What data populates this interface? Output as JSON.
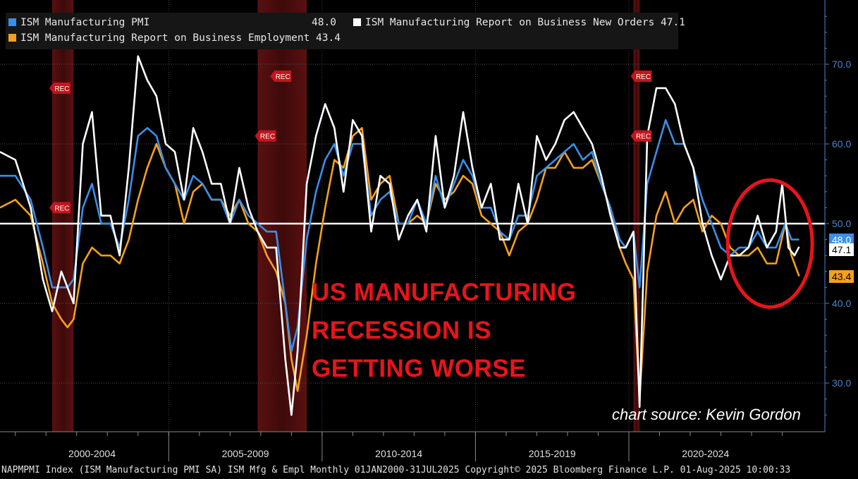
{
  "legend": {
    "pmi": {
      "label": "ISM Manufacturing PMI",
      "value": "48.0",
      "color": "#3a8fe8"
    },
    "new_orders": {
      "label": "ISM Manufacturing Report on Business New Orders",
      "value": "47.1",
      "color": "#ffffff"
    },
    "employment": {
      "label": "ISM Manufacturing Report on Business Employment",
      "value": "43.4",
      "color": "#f5a11c"
    }
  },
  "overlay": {
    "line1": "US MANUFACTURING",
    "line2": "RECESSION IS",
    "line3": "GETTING WORSE",
    "color": "#e8141a"
  },
  "source": "chart source: Kevin Gordon",
  "footer": "NAPMPMI Index (ISM Manufacturing PMI SA) ISM Mfg & Empl  Monthly 01JAN2000-31JUL2025 Copyright© 2025 Bloomberg Finance L.P. 01-Aug-2025 10:00:33",
  "recession_label": "REC",
  "chart_data": {
    "type": "line",
    "title": "",
    "xlabel": "",
    "ylabel": "",
    "x_categories": [
      "2000-2004",
      "2005-2009",
      "2010-2014",
      "2015-2019",
      "2020-2024"
    ],
    "x_range": [
      1999.5,
      2025.7
    ],
    "ylim": [
      24,
      78
    ],
    "y_ticks": [
      30.0,
      40.0,
      50.0,
      60.0,
      70.0
    ],
    "y_tick_labels": [
      "30.0",
      "40.0",
      "50.0",
      "60.0",
      "70.0"
    ],
    "reference_line": 50.0,
    "recessions": [
      [
        2001.2,
        2001.9
      ],
      [
        2007.9,
        2009.5
      ],
      [
        2020.15,
        2020.35
      ]
    ],
    "last_value_tags": [
      {
        "series": "ISM Manufacturing PMI",
        "label": "48.0",
        "value": 48.0,
        "bg": "#3a8fe8",
        "fg": "#ffffff"
      },
      {
        "series": "ISM Manufacturing Report on Business New Orders",
        "label": "47.1",
        "value": 47.1,
        "bg": "#ffffff",
        "fg": "#000000"
      },
      {
        "series": "ISM Manufacturing Report on Business Employment",
        "label": "43.4",
        "value": 43.4,
        "bg": "#f5a11c",
        "fg": "#000000"
      }
    ],
    "highlight_ellipse": {
      "center": [
        2024.6,
        47.5
      ],
      "color": "#e8141a"
    },
    "series": [
      {
        "name": "ISM Manufacturing Report on Business Employment",
        "color": "#f5a11c",
        "points": [
          [
            1999.5,
            52
          ],
          [
            2000.0,
            53
          ],
          [
            2000.5,
            51
          ],
          [
            2000.9,
            45
          ],
          [
            2001.2,
            40
          ],
          [
            2001.5,
            38
          ],
          [
            2001.7,
            37
          ],
          [
            2001.9,
            38
          ],
          [
            2002.2,
            45
          ],
          [
            2002.5,
            47
          ],
          [
            2002.8,
            46
          ],
          [
            2003.1,
            46
          ],
          [
            2003.4,
            45
          ],
          [
            2003.7,
            48
          ],
          [
            2004.0,
            53
          ],
          [
            2004.3,
            57
          ],
          [
            2004.6,
            60
          ],
          [
            2004.9,
            57
          ],
          [
            2005.2,
            55
          ],
          [
            2005.5,
            50
          ],
          [
            2005.8,
            54
          ],
          [
            2006.1,
            55
          ],
          [
            2006.4,
            53
          ],
          [
            2006.7,
            53
          ],
          [
            2007.0,
            51
          ],
          [
            2007.3,
            53
          ],
          [
            2007.6,
            50
          ],
          [
            2007.9,
            49
          ],
          [
            2008.2,
            46
          ],
          [
            2008.5,
            44
          ],
          [
            2008.8,
            40
          ],
          [
            2009.0,
            33
          ],
          [
            2009.2,
            29
          ],
          [
            2009.5,
            36
          ],
          [
            2009.8,
            45
          ],
          [
            2010.1,
            52
          ],
          [
            2010.4,
            58
          ],
          [
            2010.7,
            57
          ],
          [
            2011.0,
            61
          ],
          [
            2011.3,
            62
          ],
          [
            2011.6,
            53
          ],
          [
            2011.9,
            55
          ],
          [
            2012.2,
            56
          ],
          [
            2012.5,
            50
          ],
          [
            2012.8,
            50
          ],
          [
            2013.1,
            51
          ],
          [
            2013.4,
            50
          ],
          [
            2013.7,
            55
          ],
          [
            2014.0,
            53
          ],
          [
            2014.3,
            54
          ],
          [
            2014.6,
            56
          ],
          [
            2014.9,
            55
          ],
          [
            2015.2,
            51
          ],
          [
            2015.5,
            50
          ],
          [
            2015.8,
            49
          ],
          [
            2016.1,
            46
          ],
          [
            2016.4,
            49
          ],
          [
            2016.7,
            50
          ],
          [
            2017.0,
            53
          ],
          [
            2017.3,
            57
          ],
          [
            2017.6,
            57
          ],
          [
            2017.9,
            59
          ],
          [
            2018.2,
            57
          ],
          [
            2018.5,
            57
          ],
          [
            2018.8,
            58
          ],
          [
            2019.1,
            55
          ],
          [
            2019.4,
            52
          ],
          [
            2019.7,
            47
          ],
          [
            2019.9,
            45
          ],
          [
            2020.15,
            43
          ],
          [
            2020.35,
            28
          ],
          [
            2020.6,
            44
          ],
          [
            2020.9,
            51
          ],
          [
            2021.2,
            54
          ],
          [
            2021.5,
            50
          ],
          [
            2021.8,
            52
          ],
          [
            2022.1,
            53
          ],
          [
            2022.4,
            49
          ],
          [
            2022.7,
            51
          ],
          [
            2023.0,
            50
          ],
          [
            2023.3,
            47
          ],
          [
            2023.6,
            46
          ],
          [
            2023.9,
            46
          ],
          [
            2024.2,
            47
          ],
          [
            2024.5,
            45
          ],
          [
            2024.8,
            45
          ],
          [
            2025.1,
            50
          ],
          [
            2025.3,
            46
          ],
          [
            2025.55,
            43.4
          ]
        ]
      },
      {
        "name": "ISM Manufacturing PMI",
        "color": "#3a8fe8",
        "points": [
          [
            1999.5,
            56
          ],
          [
            2000.0,
            56
          ],
          [
            2000.5,
            53
          ],
          [
            2000.9,
            47
          ],
          [
            2001.2,
            42
          ],
          [
            2001.5,
            42
          ],
          [
            2001.7,
            42
          ],
          [
            2001.9,
            43
          ],
          [
            2002.2,
            52
          ],
          [
            2002.5,
            55
          ],
          [
            2002.8,
            50
          ],
          [
            2003.1,
            50
          ],
          [
            2003.4,
            47
          ],
          [
            2003.7,
            53
          ],
          [
            2004.0,
            61
          ],
          [
            2004.3,
            62
          ],
          [
            2004.6,
            61
          ],
          [
            2004.9,
            57
          ],
          [
            2005.2,
            55
          ],
          [
            2005.5,
            53
          ],
          [
            2005.8,
            56
          ],
          [
            2006.1,
            55
          ],
          [
            2006.4,
            53
          ],
          [
            2006.7,
            53
          ],
          [
            2007.0,
            50
          ],
          [
            2007.3,
            53
          ],
          [
            2007.6,
            51
          ],
          [
            2007.9,
            50
          ],
          [
            2008.2,
            49
          ],
          [
            2008.5,
            49
          ],
          [
            2008.8,
            40
          ],
          [
            2009.0,
            34
          ],
          [
            2009.2,
            37
          ],
          [
            2009.5,
            48
          ],
          [
            2009.8,
            54
          ],
          [
            2010.1,
            58
          ],
          [
            2010.4,
            60
          ],
          [
            2010.7,
            56
          ],
          [
            2011.0,
            60
          ],
          [
            2011.3,
            60
          ],
          [
            2011.6,
            51
          ],
          [
            2011.9,
            53
          ],
          [
            2012.2,
            54
          ],
          [
            2012.5,
            50
          ],
          [
            2012.8,
            50
          ],
          [
            2013.1,
            53
          ],
          [
            2013.4,
            50
          ],
          [
            2013.7,
            56
          ],
          [
            2014.0,
            52
          ],
          [
            2014.3,
            55
          ],
          [
            2014.6,
            58
          ],
          [
            2014.9,
            56
          ],
          [
            2015.2,
            52
          ],
          [
            2015.5,
            52
          ],
          [
            2015.8,
            49
          ],
          [
            2016.1,
            48
          ],
          [
            2016.4,
            51
          ],
          [
            2016.7,
            51
          ],
          [
            2017.0,
            56
          ],
          [
            2017.3,
            57
          ],
          [
            2017.6,
            58
          ],
          [
            2017.9,
            59
          ],
          [
            2018.2,
            60
          ],
          [
            2018.5,
            58
          ],
          [
            2018.8,
            59
          ],
          [
            2019.1,
            55
          ],
          [
            2019.4,
            52
          ],
          [
            2019.7,
            48
          ],
          [
            2019.9,
            47
          ],
          [
            2020.15,
            49
          ],
          [
            2020.35,
            42
          ],
          [
            2020.6,
            55
          ],
          [
            2020.9,
            59
          ],
          [
            2021.2,
            63
          ],
          [
            2021.5,
            60
          ],
          [
            2021.8,
            60
          ],
          [
            2022.1,
            57
          ],
          [
            2022.4,
            53
          ],
          [
            2022.7,
            50
          ],
          [
            2023.0,
            47
          ],
          [
            2023.3,
            46
          ],
          [
            2023.6,
            47
          ],
          [
            2023.9,
            47
          ],
          [
            2024.2,
            49
          ],
          [
            2024.5,
            47
          ],
          [
            2024.8,
            47
          ],
          [
            2025.1,
            50
          ],
          [
            2025.3,
            48
          ],
          [
            2025.55,
            48.0
          ]
        ]
      },
      {
        "name": "ISM Manufacturing Report on Business New Orders",
        "color": "#ffffff",
        "points": [
          [
            1999.5,
            59
          ],
          [
            2000.0,
            58
          ],
          [
            2000.5,
            52
          ],
          [
            2000.9,
            43
          ],
          [
            2001.2,
            39
          ],
          [
            2001.5,
            44
          ],
          [
            2001.7,
            42
          ],
          [
            2001.9,
            40
          ],
          [
            2002.2,
            60
          ],
          [
            2002.5,
            64
          ],
          [
            2002.8,
            51
          ],
          [
            2003.1,
            51
          ],
          [
            2003.4,
            46
          ],
          [
            2003.7,
            57
          ],
          [
            2004.0,
            71
          ],
          [
            2004.3,
            68
          ],
          [
            2004.6,
            66
          ],
          [
            2004.9,
            60
          ],
          [
            2005.2,
            59
          ],
          [
            2005.5,
            53
          ],
          [
            2005.8,
            62
          ],
          [
            2006.1,
            59
          ],
          [
            2006.4,
            55
          ],
          [
            2006.7,
            55
          ],
          [
            2007.0,
            50
          ],
          [
            2007.3,
            57
          ],
          [
            2007.6,
            52
          ],
          [
            2007.9,
            49
          ],
          [
            2008.2,
            47
          ],
          [
            2008.5,
            47
          ],
          [
            2008.8,
            33
          ],
          [
            2009.0,
            26
          ],
          [
            2009.2,
            34
          ],
          [
            2009.5,
            55
          ],
          [
            2009.8,
            61
          ],
          [
            2010.1,
            65
          ],
          [
            2010.4,
            62
          ],
          [
            2010.7,
            54
          ],
          [
            2011.0,
            63
          ],
          [
            2011.3,
            61
          ],
          [
            2011.6,
            49
          ],
          [
            2011.9,
            56
          ],
          [
            2012.2,
            55
          ],
          [
            2012.5,
            48
          ],
          [
            2012.8,
            51
          ],
          [
            2013.1,
            53
          ],
          [
            2013.4,
            49
          ],
          [
            2013.7,
            61
          ],
          [
            2014.0,
            52
          ],
          [
            2014.3,
            56
          ],
          [
            2014.6,
            64
          ],
          [
            2014.9,
            57
          ],
          [
            2015.2,
            52
          ],
          [
            2015.5,
            55
          ],
          [
            2015.8,
            48
          ],
          [
            2016.1,
            48
          ],
          [
            2016.4,
            55
          ],
          [
            2016.7,
            50
          ],
          [
            2017.0,
            61
          ],
          [
            2017.3,
            58
          ],
          [
            2017.6,
            60
          ],
          [
            2017.9,
            63
          ],
          [
            2018.2,
            64
          ],
          [
            2018.5,
            62
          ],
          [
            2018.8,
            60
          ],
          [
            2019.1,
            56
          ],
          [
            2019.4,
            51
          ],
          [
            2019.7,
            47
          ],
          [
            2019.9,
            47
          ],
          [
            2020.15,
            49
          ],
          [
            2020.35,
            27
          ],
          [
            2020.6,
            61
          ],
          [
            2020.9,
            67
          ],
          [
            2021.2,
            67
          ],
          [
            2021.5,
            65
          ],
          [
            2021.8,
            60
          ],
          [
            2022.1,
            57
          ],
          [
            2022.4,
            50
          ],
          [
            2022.7,
            46
          ],
          [
            2023.0,
            43
          ],
          [
            2023.3,
            46
          ],
          [
            2023.6,
            46
          ],
          [
            2023.9,
            47
          ],
          [
            2024.2,
            51
          ],
          [
            2024.5,
            47
          ],
          [
            2024.8,
            49
          ],
          [
            2025.0,
            55
          ],
          [
            2025.2,
            47
          ],
          [
            2025.4,
            46
          ],
          [
            2025.55,
            47.1
          ]
        ]
      }
    ]
  }
}
